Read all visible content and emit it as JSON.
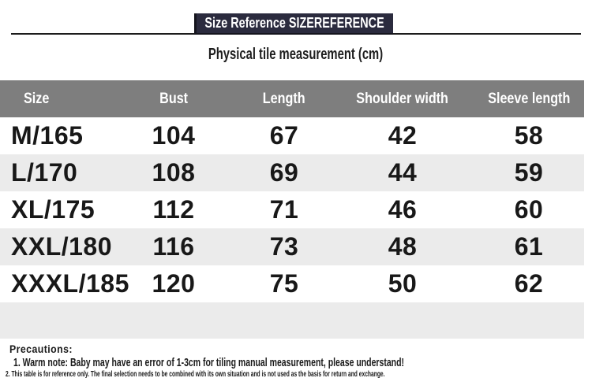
{
  "banner": {
    "title": "Size Reference SIZEREFERENCE"
  },
  "subtitle": "Physical tile measurement (cm)",
  "table": {
    "headers": [
      "Size",
      "Bust",
      "Length",
      "Shoulder width",
      "Sleeve length"
    ],
    "rows": [
      [
        "M/165",
        "104",
        "67",
        "42",
        "58"
      ],
      [
        "L/170",
        "108",
        "69",
        "44",
        "59"
      ],
      [
        "XL/175",
        "112",
        "71",
        "46",
        "60"
      ],
      [
        "XXL/180",
        "116",
        "73",
        "48",
        "61"
      ],
      [
        "XXXL/185",
        "120",
        "75",
        "50",
        "62"
      ]
    ]
  },
  "precautions": {
    "heading": "Precautions:",
    "notes": [
      "1. Warm note: Baby may have an error of 1-3cm for tiling manual measurement, please understand!",
      "2. This table is for reference only. The final selection needs to be combined with its own situation and is not used as the basis for return and exchange."
    ]
  },
  "colors": {
    "banner_bg": "#2b2b3e",
    "header_bg": "#7e7e7e",
    "stripe_bg": "#ebebeb",
    "rule": "#1c1c1c",
    "text": "#1a1a1a"
  }
}
